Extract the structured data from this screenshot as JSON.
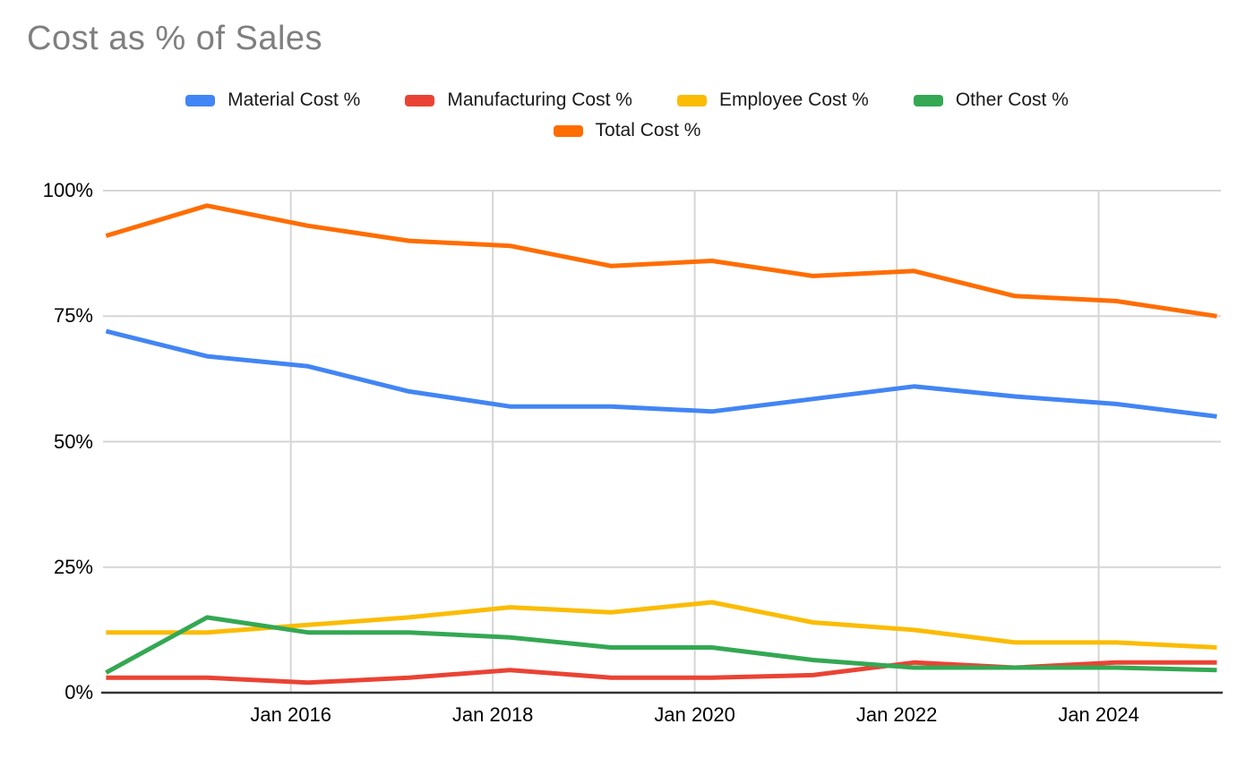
{
  "title": "Cost as % of Sales",
  "chart_data": {
    "type": "line",
    "title": "Cost as % of Sales",
    "x_years": [
      2014.17,
      2015.17,
      2016.17,
      2017.17,
      2018.17,
      2019.17,
      2020.17,
      2021.17,
      2022.17,
      2023.17,
      2024.17,
      2025.17
    ],
    "series": [
      {
        "name": "Material Cost %",
        "color": "#4285F4",
        "values": [
          72,
          67,
          65,
          60,
          57,
          57,
          56,
          58.5,
          61,
          59,
          57.5,
          55
        ]
      },
      {
        "name": "Manufacturing Cost %",
        "color": "#EA4335",
        "values": [
          3,
          3,
          2,
          3,
          4.5,
          3,
          3,
          3.5,
          6,
          5,
          6,
          6
        ]
      },
      {
        "name": "Employee Cost %",
        "color": "#FBBC04",
        "values": [
          12,
          12,
          13.5,
          15,
          17,
          16,
          18,
          14,
          12.5,
          10,
          10,
          9
        ]
      },
      {
        "name": "Other Cost %",
        "color": "#34A853",
        "values": [
          4,
          15,
          12,
          12,
          11,
          9,
          9,
          6.5,
          5,
          5,
          5,
          4.5
        ]
      },
      {
        "name": "Total Cost %",
        "color": "#FF6D01",
        "values": [
          91,
          97,
          93,
          90,
          89,
          85,
          86,
          83,
          84,
          79,
          78,
          75
        ]
      }
    ],
    "x_axis": {
      "ticks": [
        {
          "value": 2016,
          "label": "Jan 2016"
        },
        {
          "value": 2018,
          "label": "Jan 2018"
        },
        {
          "value": 2020,
          "label": "Jan 2020"
        },
        {
          "value": 2022,
          "label": "Jan 2022"
        },
        {
          "value": 2024,
          "label": "Jan 2024"
        }
      ]
    },
    "y_axis": {
      "range": [
        0,
        100
      ],
      "ticks": [
        {
          "value": 0,
          "label": "0%"
        },
        {
          "value": 25,
          "label": "25%"
        },
        {
          "value": 50,
          "label": "50%"
        },
        {
          "value": 75,
          "label": "75%"
        },
        {
          "value": 100,
          "label": "100%"
        }
      ]
    },
    "xlim": [
      2014.14,
      2025.21
    ],
    "ylim": [
      0,
      100
    ],
    "grid": true,
    "legend_position": "top",
    "colors": {
      "gridline": "#d6d6d6",
      "axis_line": "#333333",
      "title_text": "#7f7f7f",
      "label_text": "#000000",
      "background": "#ffffff"
    }
  }
}
